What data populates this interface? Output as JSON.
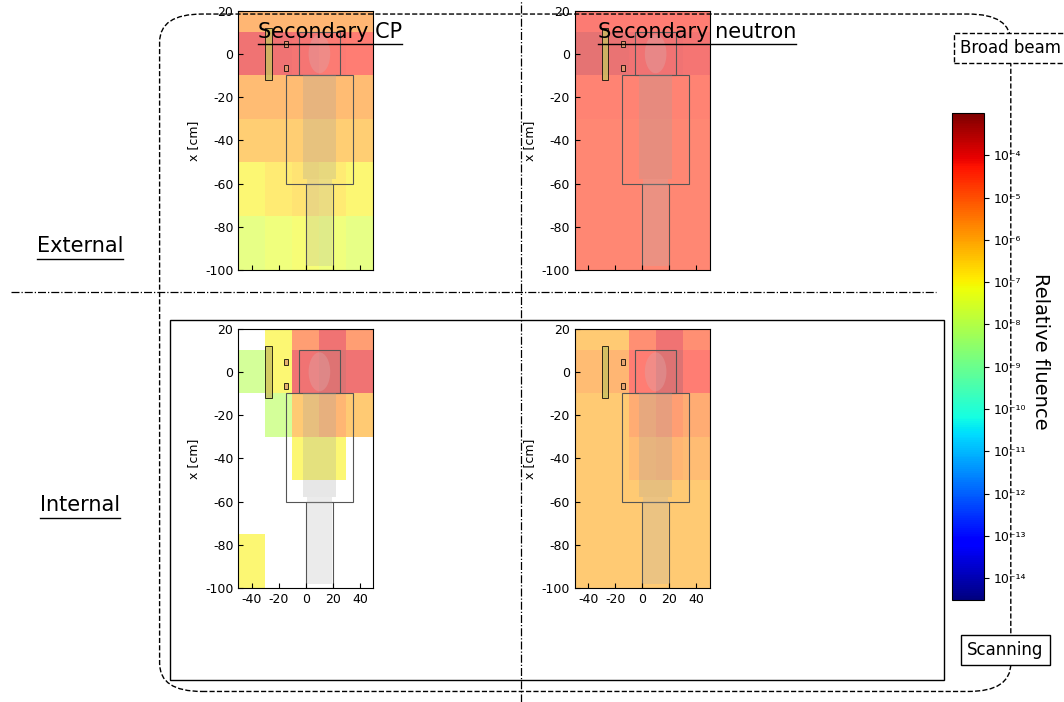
{
  "chart_data": [
    {
      "type": "heatmap",
      "ylabel": "x [cm]",
      "xlim": [
        -50,
        50
      ],
      "ylim": [
        -100,
        20
      ],
      "xticks": [
        -40,
        -20,
        0,
        20,
        40
      ],
      "yticks": [
        -100,
        -80,
        -60,
        -40,
        -20,
        0,
        20
      ],
      "tick_labels": "y",
      "x_edges": [
        -50,
        -30,
        -10,
        10,
        30,
        50
      ],
      "y_edges": [
        20,
        10,
        -10,
        -30,
        -50,
        -75,
        -100
      ],
      "cells": [
        [
          3e-06,
          3e-06,
          3e-06,
          3e-06,
          3e-06
        ],
        [
          0.0001,
          0.0001,
          8e-05,
          6e-05,
          5e-05
        ],
        [
          2e-06,
          2e-06,
          2e-06,
          2e-06,
          2e-06
        ],
        [
          8e-07,
          8e-07,
          8e-07,
          8e-07,
          8e-07
        ],
        [
          1e-07,
          2e-07,
          3e-07,
          2e-07,
          1e-07
        ],
        [
          3e-08,
          5e-08,
          8e-08,
          5e-08,
          3e-08
        ]
      ]
    },
    {
      "type": "heatmap",
      "ylabel": "x [cm]",
      "xlim": [
        -50,
        50
      ],
      "ylim": [
        -100,
        20
      ],
      "xticks": [
        -40,
        -20,
        0,
        20,
        40
      ],
      "yticks": [
        -100,
        -80,
        -60,
        -40,
        -20,
        0,
        20
      ],
      "tick_labels": "y",
      "x_edges": [
        -50,
        -30,
        -10,
        10,
        30,
        50
      ],
      "y_edges": [
        20,
        10,
        -10,
        -30,
        -50,
        -75,
        -100
      ],
      "cells": [
        [
          6e-05,
          5e-05,
          5e-05,
          5e-05,
          5e-05
        ],
        [
          0.00015,
          0.00012,
          0.0001,
          0.0001,
          8e-05
        ],
        [
          4e-05,
          4e-05,
          4e-05,
          4e-05,
          4e-05
        ],
        [
          3e-05,
          3e-05,
          3e-05,
          3e-05,
          3e-05
        ],
        [
          3e-05,
          3e-05,
          3e-05,
          3e-05,
          3e-05
        ],
        [
          3e-05,
          3e-05,
          3e-05,
          3e-05,
          3e-05
        ]
      ]
    },
    {
      "type": "heatmap",
      "ylabel": "x [cm]",
      "xlim": [
        -50,
        50
      ],
      "ylim": [
        -100,
        20
      ],
      "xticks": [
        -40,
        -20,
        0,
        20,
        40
      ],
      "yticks": [
        -100,
        -80,
        -60,
        -40,
        -20,
        0,
        20
      ],
      "x_edges": [
        -50,
        -30,
        -10,
        10,
        30,
        50
      ],
      "y_edges": [
        20,
        10,
        -10,
        -30,
        -50,
        -75,
        -100
      ],
      "cells": [
        [
          null,
          1e-07,
          1e-05,
          0.0001,
          1e-05
        ],
        [
          1e-08,
          1e-07,
          0.0001,
          0.0002,
          0.0001
        ],
        [
          null,
          1e-08,
          1e-06,
          3e-06,
          1e-06
        ],
        [
          null,
          null,
          1e-07,
          1e-07,
          null
        ],
        [
          null,
          null,
          null,
          null,
          null
        ],
        [
          1e-07,
          null,
          null,
          null,
          null
        ]
      ]
    },
    {
      "type": "heatmap",
      "ylabel": "x [cm]",
      "xlim": [
        -50,
        50
      ],
      "ylim": [
        -100,
        20
      ],
      "xticks": [
        -40,
        -20,
        0,
        20,
        40
      ],
      "yticks": [
        -100,
        -80,
        -60,
        -40,
        -20,
        0,
        20
      ],
      "x_edges": [
        -50,
        -30,
        -10,
        10,
        30,
        50
      ],
      "y_edges": [
        20,
        10,
        -10,
        -30,
        -50,
        -75,
        -100
      ],
      "cells": [
        [
          1e-06,
          1e-06,
          2e-05,
          0.0001,
          2e-05
        ],
        [
          2e-06,
          3e-06,
          5e-05,
          0.0002,
          5e-05
        ],
        [
          1e-06,
          1e-06,
          5e-06,
          1e-05,
          5e-06
        ],
        [
          1e-06,
          1e-06,
          2e-06,
          3e-06,
          2e-06
        ],
        [
          1e-06,
          1e-06,
          1e-06,
          1e-06,
          1e-06
        ],
        [
          1e-06,
          1e-06,
          1e-06,
          1e-06,
          1e-06
        ]
      ]
    }
  ],
  "columns": [
    "Secondary CP",
    "Secondary neutron"
  ],
  "rows": [
    "External",
    "Internal"
  ],
  "groups": [
    "Broad beam",
    "Scanning"
  ],
  "colorbar": {
    "label": "Relative fluence",
    "range": [
      3e-15,
      0.001
    ],
    "ticks": [
      {
        "value": 0.0001,
        "label": "10⁻⁴"
      },
      {
        "value": 1e-05,
        "label": "10⁻⁵"
      },
      {
        "value": 1e-06,
        "label": "10⁻⁶"
      },
      {
        "value": 1e-07,
        "label": "10⁻⁷"
      },
      {
        "value": 1e-08,
        "label": "10⁻⁸"
      },
      {
        "value": 1e-09,
        "label": "10⁻⁹"
      },
      {
        "value": 1e-10,
        "label": "10⁻¹⁰"
      },
      {
        "value": 1e-11,
        "label": "10⁻¹¹"
      },
      {
        "value": 1e-12,
        "label": "10⁻¹²"
      },
      {
        "value": 1e-13,
        "label": "10⁻¹³"
      },
      {
        "value": 1e-14,
        "label": "10⁻¹⁴"
      }
    ]
  }
}
